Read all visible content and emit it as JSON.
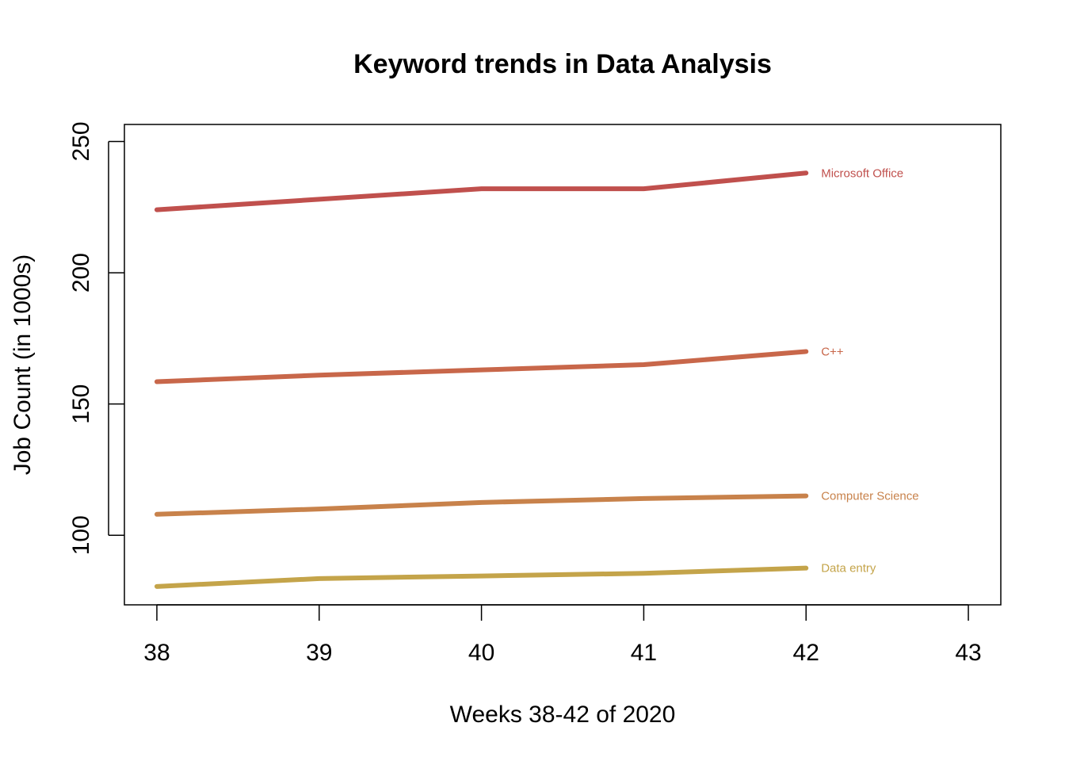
{
  "chart_data": {
    "type": "line",
    "title": "Keyword trends in Data Analysis",
    "xlabel": "Weeks 38-42 of 2020",
    "ylabel": "Job Count (in 1000s)",
    "x": [
      38,
      39,
      40,
      41,
      42
    ],
    "xticks": [
      "38",
      "39",
      "40",
      "41",
      "42",
      "43"
    ],
    "yticks": [
      "100",
      "150",
      "200",
      "250"
    ],
    "xlim": [
      37.8,
      43.2
    ],
    "ylim": [
      73.5,
      256.5
    ],
    "grid": false,
    "legend": "none",
    "series": [
      {
        "name": "Microsoft Office",
        "values": [
          224,
          228,
          232,
          232,
          238
        ],
        "color": "#c0504d"
      },
      {
        "name": "C++",
        "values": [
          158.5,
          161,
          163,
          165,
          170
        ],
        "color": "#c8674a"
      },
      {
        "name": "Computer Science",
        "values": [
          108,
          110,
          112.5,
          114,
          115
        ],
        "color": "#c8824b"
      },
      {
        "name": "Data entry",
        "values": [
          80.5,
          83.5,
          84.5,
          85.5,
          87.5
        ],
        "color": "#c4a44a"
      }
    ]
  }
}
